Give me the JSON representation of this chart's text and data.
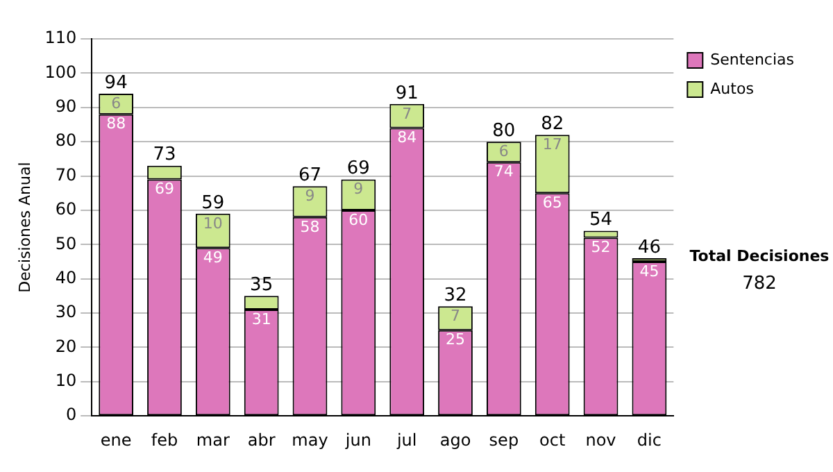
{
  "chart_data": {
    "type": "bar",
    "stacked": true,
    "ylabel": "Decisiones Anual",
    "categories": [
      "ene",
      "feb",
      "mar",
      "abr",
      "may",
      "jun",
      "jul",
      "ago",
      "sep",
      "oct",
      "nov",
      "dic"
    ],
    "series": [
      {
        "name": "Sentencias",
        "color": "#dd77bb",
        "values": [
          88,
          69,
          49,
          31,
          58,
          60,
          84,
          25,
          74,
          65,
          52,
          45
        ],
        "value_labels": [
          "88",
          "69",
          "49",
          "31",
          "58",
          "60",
          "84",
          "25",
          "74",
          "65",
          "52",
          "45"
        ]
      },
      {
        "name": "Autos",
        "color": "#cce890",
        "values": [
          6,
          4,
          10,
          4,
          9,
          9,
          7,
          7,
          6,
          17,
          2,
          1
        ],
        "value_labels": [
          "6",
          null,
          "10",
          null,
          "9",
          "9",
          "7",
          "7",
          "6",
          "17",
          null,
          null
        ]
      }
    ],
    "totals": [
      "94",
      "73",
      "59",
      "35",
      "67",
      "69",
      "91",
      "32",
      "80",
      "82",
      "54",
      "46"
    ],
    "ylim": [
      0,
      110
    ],
    "yticks": [
      0,
      10,
      20,
      30,
      40,
      50,
      60,
      70,
      80,
      90,
      100,
      110
    ],
    "grid": "y",
    "legend": "right",
    "annotations": [
      "Total Decisiones",
      "782"
    ]
  }
}
